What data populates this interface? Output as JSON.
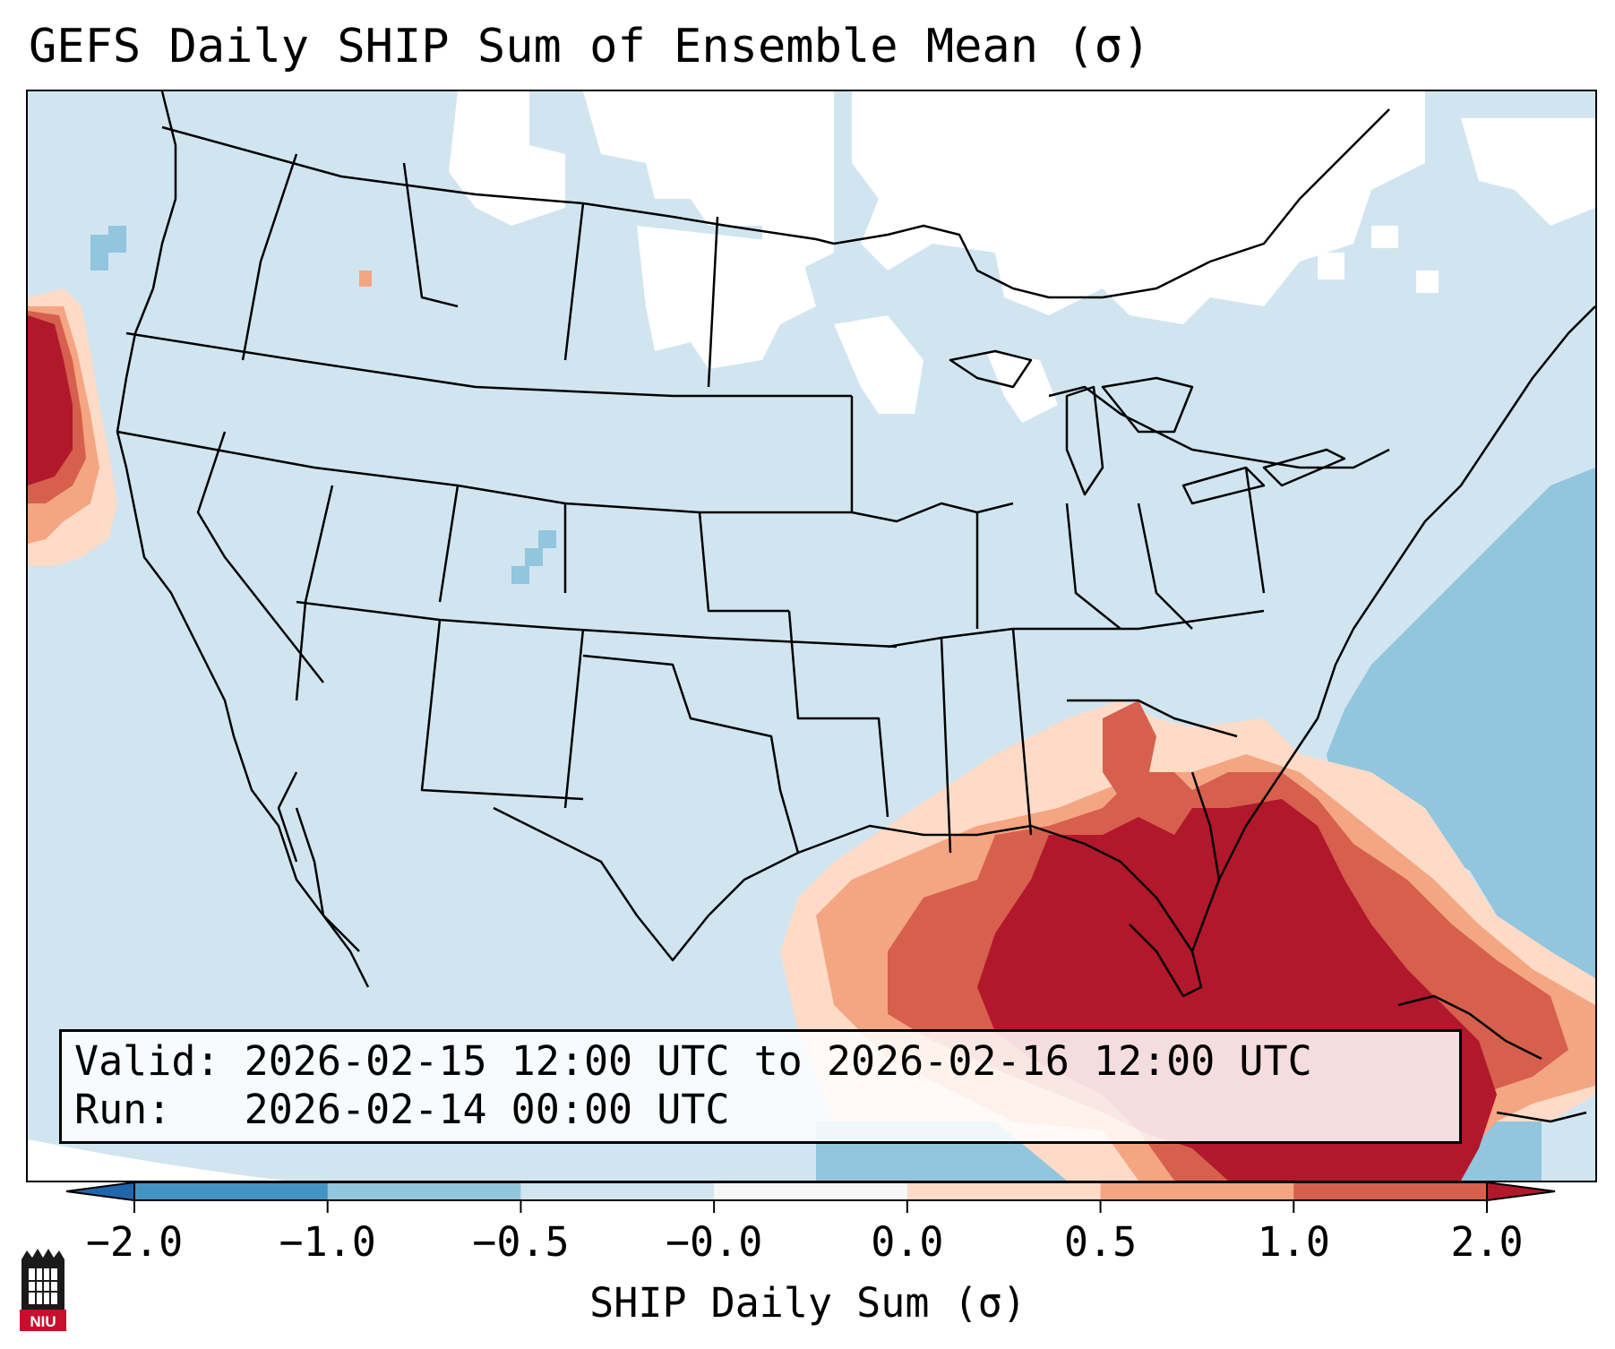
{
  "title": "GEFS Daily SHIP Sum of Ensemble Mean (σ)",
  "info": {
    "valid_line": "Valid: 2026-02-15 12:00 UTC to 2026-02-16 12:00 UTC",
    "run_line": "Run:   2026-02-14 00:00 UTC"
  },
  "colorbar": {
    "label": "SHIP Daily Sum (σ)",
    "ticks": [
      "−2.0",
      "−1.0",
      "−0.5",
      "−0.0",
      "0.0",
      "0.5",
      "1.0",
      "2.0"
    ],
    "bins": [
      {
        "range": "< -2.0",
        "color": "#2166ac"
      },
      {
        "range": "-2.0 to -1.0",
        "color": "#4393c3"
      },
      {
        "range": "-1.0 to -0.5",
        "color": "#92c5de"
      },
      {
        "range": "-0.5 to -0.0",
        "color": "#d1e5f0"
      },
      {
        "range": "-0.0 to 0.0",
        "color": "#f7f7f7"
      },
      {
        "range": "0.0 to 0.5",
        "color": "#fddbc7"
      },
      {
        "range": "0.5 to 1.0",
        "color": "#f4a582"
      },
      {
        "range": "1.0 to 2.0",
        "color": "#d6604d"
      },
      {
        "range": "> 2.0",
        "color": "#b2182b"
      }
    ]
  },
  "map": {
    "background_color": "#d1e5f0",
    "no_signal_color": "#ffffff",
    "strong_negative_color": "#92c5de",
    "positive_colors": [
      "#fddbc7",
      "#f4a582",
      "#d6604d",
      "#b2182b"
    ],
    "border_color": "#000000"
  },
  "logo_text": "NIU"
}
